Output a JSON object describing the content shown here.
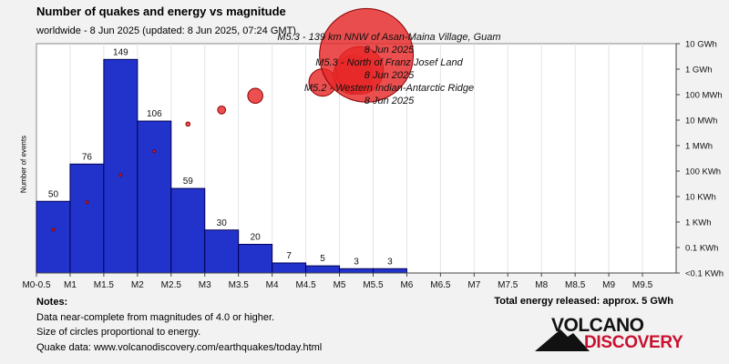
{
  "header": {
    "title": "Number of quakes and energy vs magnitude",
    "subtitle": "worldwide -  8 Jun 2025 (updated: 8 Jun 2025, 07:24 GMT)"
  },
  "notes": {
    "heading": "Notes:",
    "line1": "Data near-complete from magnitudes of 4.0 or higher.",
    "line2": "Size of circles proportional to energy.",
    "line3": "Quake data: www.volcanodiscovery.com/earthquakes/today.html"
  },
  "total_energy": "Total energy released: approx. 5 GWh",
  "logo": {
    "line1": "VOLCANO",
    "line2": "DISCOVERY",
    "red": "#c8102e"
  },
  "colors": {
    "bar_fill": "#2233cc",
    "bar_stroke": "#000055",
    "circle_fill": "#e82828",
    "circle_stroke": "#880000"
  },
  "chart_data": {
    "type": "bar",
    "ylabel": "Number of events",
    "x_tick_labels": [
      "M0-0.5",
      "M1",
      "M1.5",
      "M2",
      "M2.5",
      "M3",
      "M3.5",
      "M4",
      "M4.5",
      "M5",
      "M5.5",
      "M6",
      "M6.5",
      "M7",
      "M7.5",
      "M8",
      "M8.5",
      "M9",
      "M9.5"
    ],
    "bars": [
      {
        "bin": "0.5-1.0",
        "value": 50
      },
      {
        "bin": "1.0-1.5",
        "value": 76
      },
      {
        "bin": "1.5-2.0",
        "value": 149
      },
      {
        "bin": "2.0-2.5",
        "value": 106
      },
      {
        "bin": "2.5-3.0",
        "value": 59
      },
      {
        "bin": "3.0-3.5",
        "value": 30
      },
      {
        "bin": "3.5-4.0",
        "value": 20
      },
      {
        "bin": "4.0-4.5",
        "value": 7
      },
      {
        "bin": "4.5-5.0",
        "value": 5
      },
      {
        "bin": "5.0-5.5",
        "value": 3
      },
      {
        "bin": "5.5-6.0",
        "value": 3
      }
    ],
    "ylim": [
      0,
      160
    ],
    "energy_axis_labels": [
      "10 GWh",
      "1 GWh",
      "100 MWh",
      "10 MWh",
      "1 MWh",
      "100 KWh",
      "10 KWh",
      "1 KWh",
      "0.1 KWh",
      "<0.1 KWh"
    ],
    "energy_circles": [
      {
        "mag": 0.75,
        "energy_kwh": 0.5
      },
      {
        "mag": 1.25,
        "energy_kwh": 6
      },
      {
        "mag": 1.75,
        "energy_kwh": 70
      },
      {
        "mag": 2.25,
        "energy_kwh": 600
      },
      {
        "mag": 2.75,
        "energy_kwh": 7000
      },
      {
        "mag": 3.25,
        "energy_kwh": 25000
      },
      {
        "mag": 3.75,
        "energy_kwh": 90000
      },
      {
        "mag": 4.75,
        "energy_kwh": 300000
      },
      {
        "mag": 5.2,
        "energy_kwh": 600000
      },
      {
        "mag": 5.3,
        "energy_kwh": 900000
      },
      {
        "mag": 5.4,
        "energy_kwh": 3500000
      }
    ],
    "annotations": [
      {
        "line1": "M5.3 - 139 km NNW of Asan-Maina Village, Guam",
        "line2": "8 Jun 2025"
      },
      {
        "line1": "M5.3 - North of Franz Josef Land",
        "line2": "8 Jun 2025"
      },
      {
        "line1": "M5.2 - Western Indian-Antarctic Ridge",
        "line2": "8 Jun 2025"
      }
    ]
  }
}
